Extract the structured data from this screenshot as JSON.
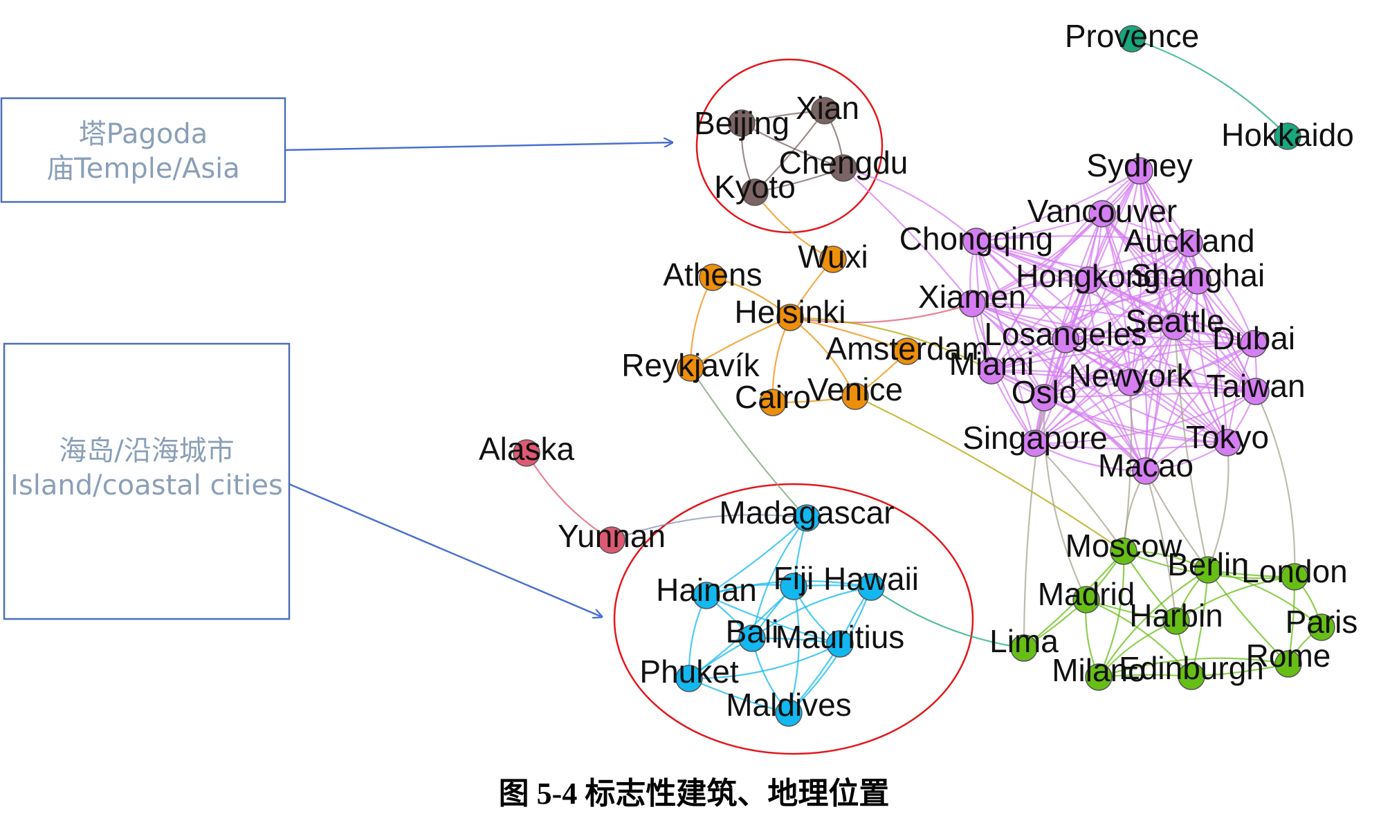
{
  "caption": "图 5-4  标志性建筑、地理位置",
  "callouts": [
    {
      "id": "pagoda",
      "line1": "塔Pagoda",
      "line2": "庙Temple/Asia"
    },
    {
      "id": "island",
      "line1": "海岛/沿海城市",
      "line2": "Island/coastal cities"
    }
  ],
  "colors": {
    "brown": "#7b6463",
    "orange": "#ee8f0b",
    "pink": "#dd5a72",
    "blue": "#12b8ef",
    "purple": "#d57ef2",
    "green": "#67bf16",
    "teal": "#19a77b",
    "callout_border": "#4a6fb5",
    "arrow": "#4a6fd0",
    "ellipse": "#e3161c"
  },
  "nodes": [
    {
      "id": "Provence",
      "label": "Provence",
      "group": "teal"
    },
    {
      "id": "Hokkaido",
      "label": "Hokkaido",
      "group": "teal"
    },
    {
      "id": "Beijing",
      "label": "Beijing",
      "group": "brown"
    },
    {
      "id": "Xian",
      "label": "Xian",
      "group": "brown"
    },
    {
      "id": "Chengdu",
      "label": "Chengdu",
      "group": "brown"
    },
    {
      "id": "Kyoto",
      "label": "Kyoto",
      "group": "brown"
    },
    {
      "id": "Wuxi",
      "label": "Wuxi",
      "group": "orange"
    },
    {
      "id": "Athens",
      "label": "Athens",
      "group": "orange"
    },
    {
      "id": "Helsinki",
      "label": "Helsinki",
      "group": "orange"
    },
    {
      "id": "Amsterdam",
      "label": "Amsterdam",
      "group": "orange"
    },
    {
      "id": "Reykjavik",
      "label": "Reykjavík",
      "group": "orange"
    },
    {
      "id": "Cairo",
      "label": "Cairo",
      "group": "orange"
    },
    {
      "id": "Venice",
      "label": "Venice",
      "group": "orange"
    },
    {
      "id": "Alaska",
      "label": "Alaska",
      "group": "pink"
    },
    {
      "id": "Yunnan",
      "label": "Yunnan",
      "group": "pink"
    },
    {
      "id": "Madagascar",
      "label": "Madagascar",
      "group": "blue"
    },
    {
      "id": "Hainan",
      "label": "Hainan",
      "group": "blue"
    },
    {
      "id": "Fiji",
      "label": "Fiji",
      "group": "blue"
    },
    {
      "id": "Hawaii",
      "label": "Hawaii",
      "group": "blue"
    },
    {
      "id": "Bali",
      "label": "Bali",
      "group": "blue"
    },
    {
      "id": "Mauritius",
      "label": "Mauritius",
      "group": "blue"
    },
    {
      "id": "Phuket",
      "label": "Phuket",
      "group": "blue"
    },
    {
      "id": "Maldives",
      "label": "Maldives",
      "group": "blue"
    },
    {
      "id": "Sydney",
      "label": "Sydney",
      "group": "purple"
    },
    {
      "id": "Vancouver",
      "label": "Vancouver",
      "group": "purple"
    },
    {
      "id": "Chongqing",
      "label": "Chongqing",
      "group": "purple"
    },
    {
      "id": "Auckland",
      "label": "Auckland",
      "group": "purple"
    },
    {
      "id": "Hongkong",
      "label": "Hongkong",
      "group": "purple"
    },
    {
      "id": "Shanghai",
      "label": "Shanghai",
      "group": "purple"
    },
    {
      "id": "Xiamen",
      "label": "Xiamen",
      "group": "purple"
    },
    {
      "id": "Seattle",
      "label": "Seattle",
      "group": "purple"
    },
    {
      "id": "Losangeles",
      "label": "Losangeles",
      "group": "purple"
    },
    {
      "id": "Dubai",
      "label": "Dubai",
      "group": "purple"
    },
    {
      "id": "Miami",
      "label": "Miami",
      "group": "purple"
    },
    {
      "id": "Oslo",
      "label": "Oslo",
      "group": "purple"
    },
    {
      "id": "Newyork",
      "label": "Newyork",
      "group": "purple"
    },
    {
      "id": "Taiwan",
      "label": "Taiwan",
      "group": "purple"
    },
    {
      "id": "Singapore",
      "label": "Singapore",
      "group": "purple"
    },
    {
      "id": "Tokyo",
      "label": "Tokyo",
      "group": "purple"
    },
    {
      "id": "Macao",
      "label": "Macao",
      "group": "purple"
    },
    {
      "id": "Moscow",
      "label": "Moscow",
      "group": "green"
    },
    {
      "id": "Berlin",
      "label": "Berlin",
      "group": "green"
    },
    {
      "id": "London",
      "label": "London",
      "group": "green"
    },
    {
      "id": "Madrid",
      "label": "Madrid",
      "group": "green"
    },
    {
      "id": "Harbin",
      "label": "Harbin",
      "group": "green"
    },
    {
      "id": "Paris",
      "label": "Paris",
      "group": "green"
    },
    {
      "id": "Lima",
      "label": "Lima",
      "group": "green"
    },
    {
      "id": "Milano",
      "label": "Milano",
      "group": "green"
    },
    {
      "id": "Edinburgh",
      "label": "Edinburgh",
      "group": "green"
    },
    {
      "id": "Rome",
      "label": "Rome",
      "group": "green"
    }
  ],
  "edges": [
    [
      "Provence",
      "Hokkaido",
      "teal"
    ],
    [
      "Beijing",
      "Xian",
      "brown"
    ],
    [
      "Beijing",
      "Chengdu",
      "brown"
    ],
    [
      "Beijing",
      "Kyoto",
      "brown"
    ],
    [
      "Xian",
      "Chengdu",
      "brown"
    ],
    [
      "Xian",
      "Kyoto",
      "brown"
    ],
    [
      "Kyoto",
      "Chengdu",
      "brown"
    ],
    [
      "Kyoto",
      "Wuxi",
      "orange"
    ],
    [
      "Chengdu",
      "Chongqing",
      "purple"
    ],
    [
      "Chengdu",
      "Xiamen",
      "purple"
    ],
    [
      "Wuxi",
      "Helsinki",
      "orange"
    ],
    [
      "Athens",
      "Reykjavik",
      "orange"
    ],
    [
      "Athens",
      "Helsinki",
      "orange"
    ],
    [
      "Helsinki",
      "Amsterdam",
      "orange"
    ],
    [
      "Helsinki",
      "Reykjavik",
      "orange"
    ],
    [
      "Helsinki",
      "Cairo",
      "orange"
    ],
    [
      "Helsinki",
      "Venice",
      "orange"
    ],
    [
      "Amsterdam",
      "Venice",
      "orange"
    ],
    [
      "Cairo",
      "Venice",
      "orange"
    ],
    [
      "Helsinki",
      "Xiamen",
      "pink"
    ],
    [
      "Helsinki",
      "Miami",
      "olive"
    ],
    [
      "Venice",
      "Moscow",
      "olive"
    ],
    [
      "Reykjavik",
      "Madagascar",
      "sage"
    ],
    [
      "Alaska",
      "Yunnan",
      "pink"
    ],
    [
      "Yunnan",
      "Madagascar",
      "slate"
    ],
    [
      "Madagascar",
      "Hainan",
      "blue"
    ],
    [
      "Madagascar",
      "Fiji",
      "blue"
    ],
    [
      "Madagascar",
      "Bali",
      "blue"
    ],
    [
      "Hainan",
      "Fiji",
      "blue"
    ],
    [
      "Hainan",
      "Bali",
      "blue"
    ],
    [
      "Hainan",
      "Mauritius",
      "blue"
    ],
    [
      "Hainan",
      "Phuket",
      "blue"
    ],
    [
      "Hainan",
      "Hawaii",
      "blue"
    ],
    [
      "Fiji",
      "Hawaii",
      "blue"
    ],
    [
      "Fiji",
      "Bali",
      "blue"
    ],
    [
      "Fiji",
      "Mauritius",
      "blue"
    ],
    [
      "Fiji",
      "Maldives",
      "blue"
    ],
    [
      "Fiji",
      "Phuket",
      "blue"
    ],
    [
      "Hawaii",
      "Mauritius",
      "blue"
    ],
    [
      "Hawaii",
      "Bali",
      "blue"
    ],
    [
      "Hawaii",
      "Maldives",
      "blue"
    ],
    [
      "Bali",
      "Mauritius",
      "blue"
    ],
    [
      "Bali",
      "Phuket",
      "blue"
    ],
    [
      "Bali",
      "Maldives",
      "blue"
    ],
    [
      "Mauritius",
      "Phuket",
      "blue"
    ],
    [
      "Mauritius",
      "Maldives",
      "blue"
    ],
    [
      "Phuket",
      "Maldives",
      "blue"
    ],
    [
      "Hawaii",
      "Lima",
      "teal"
    ],
    [
      "Moscow",
      "Berlin",
      "green"
    ],
    [
      "Moscow",
      "Madrid",
      "green"
    ],
    [
      "Moscow",
      "Harbin",
      "green"
    ],
    [
      "Moscow",
      "London",
      "green"
    ],
    [
      "Moscow",
      "Milano",
      "green"
    ],
    [
      "Moscow",
      "Lima",
      "green"
    ],
    [
      "Berlin",
      "London",
      "green"
    ],
    [
      "Berlin",
      "Harbin",
      "green"
    ],
    [
      "Berlin",
      "Paris",
      "green"
    ],
    [
      "Berlin",
      "Edinburgh",
      "green"
    ],
    [
      "Berlin",
      "Rome",
      "green"
    ],
    [
      "Berlin",
      "Milano",
      "green"
    ],
    [
      "London",
      "Paris",
      "green"
    ],
    [
      "London",
      "Rome",
      "green"
    ],
    [
      "Madrid",
      "Harbin",
      "green"
    ],
    [
      "Madrid",
      "Milano",
      "green"
    ],
    [
      "Madrid",
      "Edinburgh",
      "green"
    ],
    [
      "Madrid",
      "Lima",
      "green"
    ],
    [
      "Harbin",
      "Edinburgh",
      "green"
    ],
    [
      "Harbin",
      "Milano",
      "green"
    ],
    [
      "Harbin",
      "London",
      "green"
    ],
    [
      "Milano",
      "Edinburgh",
      "green"
    ],
    [
      "Edinburgh",
      "Rome",
      "green"
    ],
    [
      "Paris",
      "Rome",
      "green"
    ],
    [
      "Milano",
      "Rome",
      "green"
    ],
    [
      "Singapore",
      "Moscow",
      "gray"
    ],
    [
      "Macao",
      "Berlin",
      "gray"
    ],
    [
      "Macao",
      "Moscow",
      "gray"
    ],
    [
      "Tokyo",
      "Berlin",
      "gray"
    ],
    [
      "Newyork",
      "Moscow",
      "gray"
    ],
    [
      "Oslo",
      "Lima",
      "gray"
    ],
    [
      "Oslo",
      "Madrid",
      "gray"
    ],
    [
      "Taiwan",
      "London",
      "gray"
    ],
    [
      "Macao",
      "Harbin",
      "gray"
    ],
    [
      "Seattle",
      "Berlin",
      "gray"
    ]
  ]
}
